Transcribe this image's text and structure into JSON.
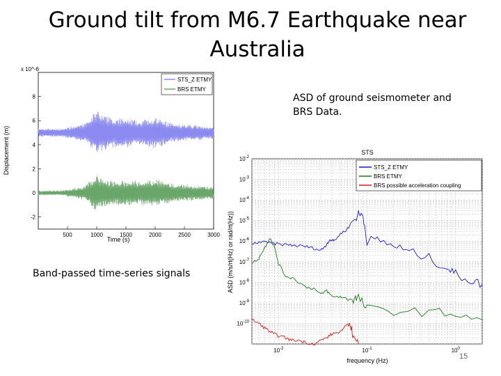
{
  "slide": {
    "title": "Ground tilt from M6.7 Earthquake near Australia",
    "caption_asd": "ASD of ground seismometer  and BRS Data.",
    "caption_band": "Band-passed time-series signals",
    "page_number": "15"
  },
  "chart_data": [
    {
      "type": "line",
      "xlabel": "Time (s)",
      "ylabel": "Displacement (m)",
      "y_multiplier": "x 10^-6",
      "xlim": [
        0,
        3000
      ],
      "ylim": [
        -3,
        10
      ],
      "x_ticks": [
        500,
        1000,
        1500,
        2000,
        2500,
        3000
      ],
      "y_ticks": [
        -2,
        0,
        2,
        4,
        6,
        8
      ],
      "grid": false,
      "legend": "top-right",
      "series": [
        {
          "name": "STS_Z ETMY",
          "color": "#8a8af0",
          "offset": 5,
          "baseline_amp": 0.35,
          "envelope_x": [
            0,
            400,
            800,
            900,
            1000,
            1100,
            1300,
            1500,
            1700,
            2000,
            2300,
            2600,
            3000
          ],
          "envelope_amp": [
            0.35,
            0.35,
            0.8,
            1.3,
            2.1,
            1.6,
            1.3,
            1.3,
            1.0,
            1.4,
            0.8,
            0.7,
            0.5
          ]
        },
        {
          "name": "BRS ETMY",
          "color": "#6aa56a",
          "offset": 0,
          "baseline_amp": 0.2,
          "envelope_x": [
            0,
            400,
            800,
            900,
            1000,
            1100,
            1300,
            1500,
            1700,
            2000,
            2300,
            2600,
            3000
          ],
          "envelope_amp": [
            0.2,
            0.2,
            0.6,
            1.1,
            1.6,
            1.2,
            1.0,
            1.1,
            1.0,
            1.2,
            0.8,
            0.7,
            0.5
          ]
        }
      ]
    },
    {
      "type": "line",
      "title": "STS",
      "xlabel": "frequency (Hz)",
      "ylabel": "ASD (m/s/rt(Hz) or rad/rt(Hz))",
      "x_scale": "log",
      "y_scale": "log",
      "xlim": [
        0.005,
        2
      ],
      "ylim": [
        1e-11,
        0.01
      ],
      "x_tick_labels": [
        "10^-2",
        "10^-1",
        "10^0"
      ],
      "y_tick_labels": [
        "10^-2",
        "10^-3",
        "10^-4",
        "10^-5",
        "10^-6",
        "10^-7",
        "10^-8",
        "10^-9",
        "10^-10"
      ],
      "grid": true,
      "legend": "top-right",
      "series": [
        {
          "name": "STS_Z ETMY",
          "color": "#1a1ad8",
          "x": [
            0.005,
            0.006,
            0.008,
            0.01,
            0.013,
            0.016,
            0.02,
            0.025,
            0.03,
            0.034,
            0.038,
            0.042,
            0.05,
            0.06,
            0.07,
            0.08,
            0.09,
            0.1,
            0.13,
            0.2,
            0.3,
            0.5,
            0.8,
            1.0,
            1.5,
            2.0
          ],
          "y": [
            7e-07,
            9e-07,
            8e-07,
            7e-07,
            6.5e-07,
            6e-07,
            5.5e-07,
            4.5e-07,
            3.5e-07,
            6e-07,
            1.2e-06,
            1e-06,
            2.2e-06,
            4e-06,
            1e-05,
            2e-05,
            1.8e-05,
            1e-06,
            1.2e-06,
            6e-07,
            3e-07,
            1.5e-07,
            5e-08,
            2.5e-08,
            1.2e-08,
            8e-09
          ]
        },
        {
          "name": "BRS ETMY",
          "color": "#1a7a1a",
          "x": [
            0.005,
            0.006,
            0.007,
            0.008,
            0.009,
            0.01,
            0.012,
            0.015,
            0.02,
            0.025,
            0.03,
            0.035,
            0.04,
            0.05,
            0.06,
            0.07,
            0.08,
            0.1,
            0.2,
            0.5,
            1.0,
            2.0
          ],
          "y": [
            8e-08,
            1.5e-07,
            5e-07,
            1.5e-06,
            5e-07,
            8e-08,
            2e-08,
            1.5e-08,
            6e-09,
            5e-09,
            2.5e-09,
            4e-09,
            2e-09,
            2e-09,
            1.5e-09,
            1.5e-09,
            1.8e-09,
            5e-10,
            4e-10,
            3.5e-10,
            3e-10,
            1.5e-10
          ]
        },
        {
          "name": "BRS possible acceleration coupling",
          "color": "#d81a1a",
          "x": [
            0.005,
            0.006,
            0.007,
            0.008,
            0.009,
            0.01,
            0.012,
            0.014,
            0.017,
            0.02,
            0.025,
            0.03,
            0.035,
            0.04,
            0.05,
            0.06,
            0.065,
            0.07,
            0.08
          ],
          "y": [
            1.5e-10,
            1e-10,
            6e-11,
            4e-11,
            3e-11,
            2.5e-11,
            2e-11,
            1.5e-11,
            1.5e-11,
            1.2e-11,
            1e-11,
            1.5e-11,
            2e-11,
            3e-11,
            4e-11,
            8e-11,
            1e-10,
            2e-11,
            1e-11
          ]
        }
      ]
    }
  ]
}
